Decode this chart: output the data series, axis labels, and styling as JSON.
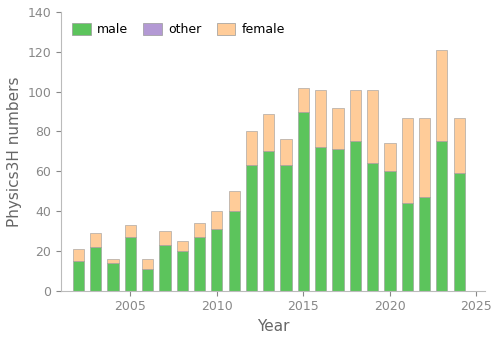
{
  "years": [
    2002,
    2003,
    2004,
    2005,
    2006,
    2007,
    2008,
    2009,
    2010,
    2011,
    2012,
    2013,
    2014,
    2015,
    2016,
    2017,
    2018,
    2019,
    2020,
    2021,
    2022,
    2023,
    2024
  ],
  "male": [
    15,
    22,
    14,
    27,
    11,
    23,
    20,
    27,
    31,
    40,
    63,
    70,
    63,
    90,
    72,
    71,
    75,
    64,
    60,
    44,
    47,
    75,
    59
  ],
  "other": [
    0,
    0,
    0,
    0,
    0,
    0,
    0,
    0,
    0,
    0,
    0,
    0,
    0,
    0,
    0,
    0,
    0,
    0,
    0,
    0,
    0,
    0,
    0
  ],
  "female": [
    6,
    7,
    2,
    6,
    5,
    7,
    5,
    7,
    9,
    10,
    17,
    19,
    13,
    12,
    29,
    21,
    26,
    37,
    14,
    43,
    40,
    46,
    28
  ],
  "male_color": "#5cc45c",
  "other_color": "#b399d4",
  "female_color": "#ffcc99",
  "bar_edge_color": "#999999",
  "xlabel": "Year",
  "ylabel": "Physics3H numbers",
  "ylim": [
    0,
    140
  ],
  "yticks": [
    0,
    20,
    40,
    60,
    80,
    100,
    120,
    140
  ],
  "bg_color": "#ffffff",
  "axis_fontsize": 11,
  "tick_fontsize": 9,
  "bar_width": 0.65
}
